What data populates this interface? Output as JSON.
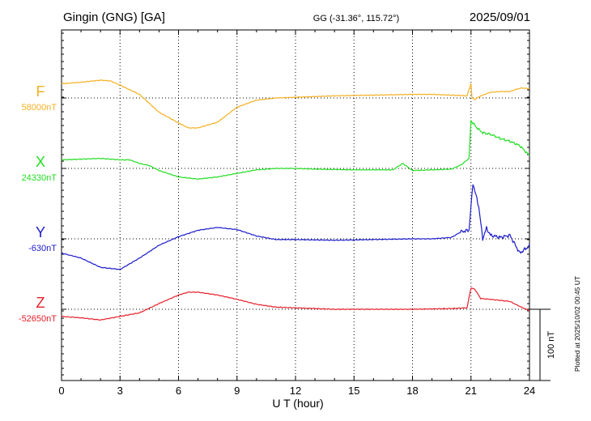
{
  "header": {
    "station": "Gingin (GNG)  [GA]",
    "coords": "GG (-31.36°, 115.72°)",
    "date": "2025/09/01"
  },
  "footer": {
    "plotted": "Plotted at 2025/10/02 00:45 UT"
  },
  "chart_data": {
    "type": "line",
    "xlabel": "U T (hour)",
    "xlim": [
      0,
      24
    ],
    "xticks": [
      0,
      3,
      6,
      9,
      12,
      15,
      18,
      21,
      24
    ],
    "scale_bar_nT": 100,
    "scale_label": "100 nT",
    "grid": true,
    "series": [
      {
        "name": "F",
        "baseline_label": "58000nT",
        "baseline_nT": 58000,
        "color": "#f5b021",
        "points": [
          [
            0,
            20
          ],
          [
            1,
            22
          ],
          [
            2,
            25
          ],
          [
            2.5,
            24
          ],
          [
            3,
            18
          ],
          [
            4,
            5
          ],
          [
            5,
            -20
          ],
          [
            6,
            -35
          ],
          [
            6.5,
            -42
          ],
          [
            7,
            -42
          ],
          [
            8,
            -34
          ],
          [
            9,
            -13
          ],
          [
            10,
            -3
          ],
          [
            11,
            0
          ],
          [
            12,
            1
          ],
          [
            14,
            3
          ],
          [
            16,
            4
          ],
          [
            18,
            5
          ],
          [
            19,
            5
          ],
          [
            20,
            4
          ],
          [
            20.8,
            3
          ],
          [
            21,
            20
          ],
          [
            21.05,
            0
          ],
          [
            21.2,
            -2
          ],
          [
            21.5,
            3
          ],
          [
            22,
            8
          ],
          [
            22.5,
            9
          ],
          [
            23,
            9
          ],
          [
            23.3,
            12
          ],
          [
            23.6,
            14
          ],
          [
            24,
            13
          ]
        ]
      },
      {
        "name": "X",
        "baseline_label": "24330nT",
        "baseline_nT": 24330,
        "color": "#22dd22",
        "points": [
          [
            0,
            12
          ],
          [
            1,
            13
          ],
          [
            2,
            14
          ],
          [
            3,
            12
          ],
          [
            3.5,
            12
          ],
          [
            4,
            7
          ],
          [
            4.5,
            4
          ],
          [
            5,
            -3
          ],
          [
            6,
            -12
          ],
          [
            7,
            -15
          ],
          [
            8,
            -12
          ],
          [
            9,
            -7
          ],
          [
            10,
            -2
          ],
          [
            11,
            0
          ],
          [
            12,
            0
          ],
          [
            13,
            -1
          ],
          [
            15,
            -2
          ],
          [
            16,
            -2
          ],
          [
            17,
            -2
          ],
          [
            17.5,
            7
          ],
          [
            18,
            -3
          ],
          [
            19,
            -2
          ],
          [
            20,
            -1
          ],
          [
            20.5,
            5
          ],
          [
            20.9,
            14
          ],
          [
            21,
            67
          ],
          [
            21.3,
            57
          ],
          [
            21.6,
            50
          ],
          [
            22,
            48
          ],
          [
            22.5,
            42
          ],
          [
            23,
            38
          ],
          [
            23.5,
            32
          ],
          [
            24,
            18
          ]
        ]
      },
      {
        "name": "Y",
        "baseline_label": "-630nT",
        "baseline_nT": -630,
        "color": "#1c1ccc",
        "points": [
          [
            0,
            -20
          ],
          [
            1,
            -27
          ],
          [
            2,
            -40
          ],
          [
            3,
            -43
          ],
          [
            4,
            -27
          ],
          [
            5,
            -9
          ],
          [
            6,
            3
          ],
          [
            7,
            12
          ],
          [
            8,
            16
          ],
          [
            9,
            13
          ],
          [
            10,
            4
          ],
          [
            11,
            -1
          ],
          [
            12,
            -1
          ],
          [
            14,
            -2
          ],
          [
            16,
            -1
          ],
          [
            18,
            0
          ],
          [
            19,
            0
          ],
          [
            20,
            2
          ],
          [
            20.5,
            10
          ],
          [
            20.9,
            12
          ],
          [
            21.1,
            78
          ],
          [
            21.4,
            45
          ],
          [
            21.6,
            0
          ],
          [
            21.8,
            15
          ],
          [
            22,
            5
          ],
          [
            22.5,
            2
          ],
          [
            23,
            5
          ],
          [
            23.5,
            -20
          ],
          [
            24,
            -10
          ]
        ]
      },
      {
        "name": "Z",
        "baseline_label": "-52650nT",
        "baseline_nT": -52650,
        "color": "#e8202a",
        "points": [
          [
            0,
            -10
          ],
          [
            1,
            -12
          ],
          [
            2,
            -15
          ],
          [
            3,
            -10
          ],
          [
            4,
            -5
          ],
          [
            5,
            8
          ],
          [
            6,
            20
          ],
          [
            6.5,
            24
          ],
          [
            7,
            24
          ],
          [
            8,
            20
          ],
          [
            9,
            14
          ],
          [
            10,
            7
          ],
          [
            11,
            3
          ],
          [
            12,
            2
          ],
          [
            14,
            0
          ],
          [
            16,
            0
          ],
          [
            18,
            0
          ],
          [
            20,
            1
          ],
          [
            20.8,
            2
          ],
          [
            21,
            30
          ],
          [
            21.2,
            28
          ],
          [
            21.5,
            15
          ],
          [
            22,
            14
          ],
          [
            23,
            11
          ],
          [
            23.5,
            4
          ],
          [
            24,
            -2
          ]
        ]
      }
    ]
  }
}
